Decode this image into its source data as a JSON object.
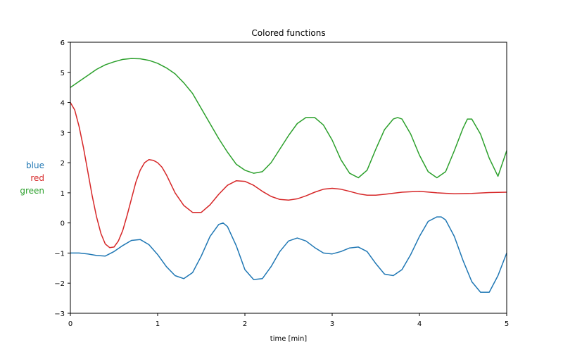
{
  "chart_data": {
    "type": "line",
    "title": "Colored functions",
    "xlabel": "time [min]",
    "ylabel_parts": [
      {
        "text": "blue",
        "color": "#1f77b4"
      },
      {
        "text": "red",
        "color": "#d62728"
      },
      {
        "text": "green",
        "color": "#2ca02c"
      }
    ],
    "xlim": [
      0,
      5
    ],
    "ylim": [
      -3,
      6
    ],
    "xticks": [
      0,
      1,
      2,
      3,
      4,
      5
    ],
    "yticks": [
      -3,
      -2,
      -1,
      0,
      1,
      2,
      3,
      4,
      5,
      6
    ],
    "xtick_labels": [
      "0",
      "1",
      "2",
      "3",
      "4",
      "5"
    ],
    "ytick_labels": [
      "−3",
      "−2",
      "−1",
      "0",
      "1",
      "2",
      "3",
      "4",
      "5",
      "6"
    ],
    "grid": false,
    "series": [
      {
        "color": "#1f77b4",
        "x": [
          0,
          0.1,
          0.2,
          0.3,
          0.4,
          0.5,
          0.6,
          0.7,
          0.8,
          0.9,
          1.0,
          1.1,
          1.2,
          1.3,
          1.4,
          1.5,
          1.6,
          1.7,
          1.75,
          1.8,
          1.9,
          2.0,
          2.1,
          2.2,
          2.3,
          2.4,
          2.5,
          2.6,
          2.7,
          2.8,
          2.9,
          3.0,
          3.1,
          3.2,
          3.3,
          3.4,
          3.5,
          3.6,
          3.7,
          3.8,
          3.9,
          4.0,
          4.1,
          4.2,
          4.25,
          4.3,
          4.4,
          4.5,
          4.6,
          4.7,
          4.8,
          4.9,
          5.0
        ],
        "y": [
          -1.0,
          -1.0,
          -1.03,
          -1.08,
          -1.1,
          -0.95,
          -0.75,
          -0.58,
          -0.55,
          -0.72,
          -1.05,
          -1.45,
          -1.75,
          -1.85,
          -1.65,
          -1.1,
          -0.45,
          -0.05,
          0.0,
          -0.12,
          -0.75,
          -1.55,
          -1.88,
          -1.85,
          -1.45,
          -0.95,
          -0.6,
          -0.5,
          -0.6,
          -0.82,
          -1.0,
          -1.03,
          -0.95,
          -0.83,
          -0.8,
          -0.95,
          -1.35,
          -1.7,
          -1.75,
          -1.55,
          -1.05,
          -0.45,
          0.05,
          0.2,
          0.2,
          0.1,
          -0.45,
          -1.25,
          -1.95,
          -2.3,
          -2.3,
          -1.75,
          -1.0
        ]
      },
      {
        "color": "#d62728",
        "x": [
          0,
          0.05,
          0.1,
          0.15,
          0.2,
          0.25,
          0.3,
          0.35,
          0.4,
          0.45,
          0.5,
          0.55,
          0.6,
          0.65,
          0.7,
          0.75,
          0.8,
          0.85,
          0.9,
          0.95,
          1.0,
          1.05,
          1.1,
          1.2,
          1.3,
          1.4,
          1.5,
          1.6,
          1.7,
          1.8,
          1.9,
          2.0,
          2.1,
          2.2,
          2.3,
          2.4,
          2.5,
          2.6,
          2.7,
          2.8,
          2.9,
          3.0,
          3.1,
          3.2,
          3.3,
          3.4,
          3.5,
          3.6,
          3.8,
          4.0,
          4.2,
          4.4,
          4.6,
          4.8,
          5.0
        ],
        "y": [
          4.0,
          3.75,
          3.2,
          2.5,
          1.7,
          0.9,
          0.2,
          -0.35,
          -0.7,
          -0.82,
          -0.8,
          -0.6,
          -0.25,
          0.25,
          0.8,
          1.35,
          1.75,
          2.0,
          2.1,
          2.08,
          2.0,
          1.85,
          1.6,
          1.0,
          0.58,
          0.35,
          0.35,
          0.6,
          0.95,
          1.25,
          1.4,
          1.38,
          1.25,
          1.05,
          0.88,
          0.78,
          0.76,
          0.8,
          0.9,
          1.02,
          1.12,
          1.15,
          1.12,
          1.05,
          0.97,
          0.92,
          0.92,
          0.95,
          1.02,
          1.05,
          1.0,
          0.97,
          0.98,
          1.01,
          1.02
        ]
      },
      {
        "color": "#2ca02c",
        "x": [
          0,
          0.1,
          0.2,
          0.3,
          0.4,
          0.5,
          0.6,
          0.7,
          0.8,
          0.9,
          1.0,
          1.1,
          1.2,
          1.3,
          1.4,
          1.5,
          1.6,
          1.7,
          1.8,
          1.9,
          2.0,
          2.1,
          2.2,
          2.3,
          2.4,
          2.5,
          2.6,
          2.7,
          2.8,
          2.9,
          3.0,
          3.1,
          3.2,
          3.3,
          3.4,
          3.5,
          3.6,
          3.7,
          3.75,
          3.8,
          3.9,
          4.0,
          4.1,
          4.2,
          4.3,
          4.4,
          4.5,
          4.55,
          4.6,
          4.7,
          4.8,
          4.9,
          5.0
        ],
        "y": [
          4.5,
          4.7,
          4.9,
          5.1,
          5.25,
          5.35,
          5.43,
          5.46,
          5.45,
          5.4,
          5.3,
          5.15,
          4.95,
          4.65,
          4.3,
          3.8,
          3.3,
          2.8,
          2.35,
          1.95,
          1.75,
          1.65,
          1.7,
          2.0,
          2.45,
          2.9,
          3.3,
          3.5,
          3.5,
          3.25,
          2.75,
          2.1,
          1.65,
          1.5,
          1.75,
          2.45,
          3.1,
          3.45,
          3.5,
          3.45,
          2.95,
          2.25,
          1.7,
          1.5,
          1.7,
          2.4,
          3.15,
          3.45,
          3.45,
          2.95,
          2.15,
          1.55,
          2.4
        ]
      }
    ]
  }
}
